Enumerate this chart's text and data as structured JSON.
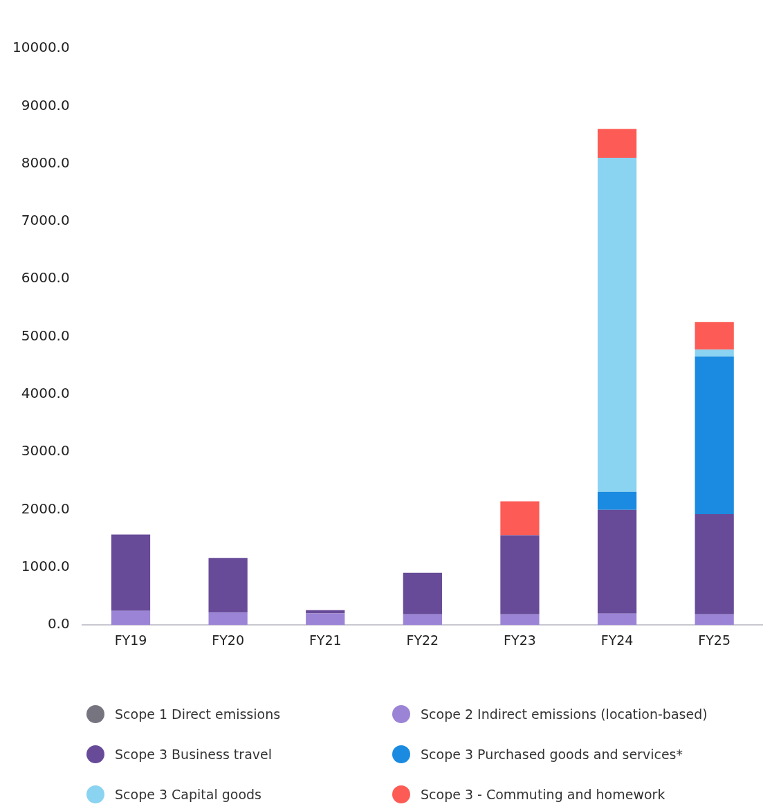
{
  "chart_data": {
    "type": "bar",
    "stacked": true,
    "categories": [
      "FY19",
      "FY20",
      "FY21",
      "FY22",
      "FY23",
      "FY24",
      "FY25"
    ],
    "series": [
      {
        "name": "Scope 1 Direct emissions",
        "color": "#76757f",
        "values": [
          0,
          0,
          0,
          0,
          0,
          0,
          0
        ]
      },
      {
        "name": "Scope 2 Indirect emissions (location-based)",
        "color": "#9b84d6",
        "values": [
          245,
          215,
          200,
          184,
          184,
          196,
          184
        ]
      },
      {
        "name": "Scope 3 Business travel",
        "color": "#674b98",
        "values": [
          1324,
          950,
          57,
          723,
          1372,
          1802,
          1740
        ]
      },
      {
        "name": "Scope 3 Purchased goods and services*",
        "color": "#1a8be0",
        "values": [
          0,
          0,
          0,
          0,
          0,
          312,
          2733
        ]
      },
      {
        "name": "Scope 3 Capital goods",
        "color": "#8ad3f1",
        "values": [
          0,
          0,
          0,
          0,
          0,
          5795,
          118
        ]
      },
      {
        "name": "Scope 3 - Commuting and homework",
        "color": "#fc5c55",
        "values": [
          0,
          0,
          0,
          0,
          589,
          500,
          482
        ]
      }
    ],
    "ylim": [
      0,
      10000
    ],
    "yticks": [
      {
        "value": 0,
        "label": "0.0"
      },
      {
        "value": 1000,
        "label": "1000.0"
      },
      {
        "value": 2000,
        "label": "2000.0"
      },
      {
        "value": 3000,
        "label": "3000.0"
      },
      {
        "value": 4000,
        "label": "4000.0"
      },
      {
        "value": 5000,
        "label": "5000.0"
      },
      {
        "value": 6000,
        "label": "6000.0"
      },
      {
        "value": 7000,
        "label": "7000.0"
      },
      {
        "value": 8000,
        "label": "8000.0"
      },
      {
        "value": 9000,
        "label": "9000.0"
      },
      {
        "value": 10000,
        "label": "10000.0"
      }
    ],
    "grid": false,
    "legend": "bottom"
  }
}
